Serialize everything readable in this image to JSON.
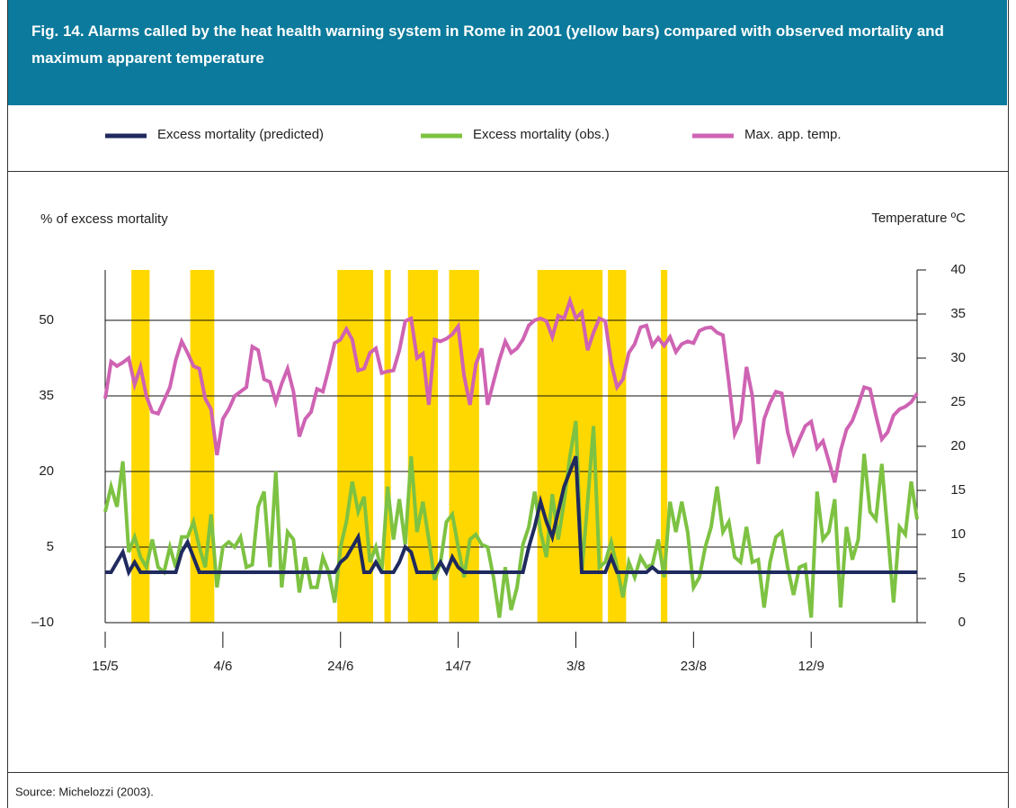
{
  "header": {
    "title": "Fig. 14. Alarms called by the heat health warning system in Rome in 2001 (yellow bars) compared with observed mortality and maximum apparent temperature"
  },
  "chart_data": {
    "type": "line",
    "ylabel": "% of excess mortality",
    "y2label": "Temperature ºC",
    "categories": [
      "15/5",
      null,
      null,
      null,
      null,
      null,
      null,
      null,
      null,
      null,
      null,
      null,
      null,
      null,
      null,
      null,
      null,
      null,
      null,
      null,
      "4/6",
      null,
      null,
      null,
      null,
      null,
      null,
      null,
      null,
      null,
      null,
      null,
      null,
      null,
      null,
      null,
      null,
      null,
      null,
      null,
      "24/6",
      null,
      null,
      null,
      null,
      null,
      null,
      null,
      null,
      null,
      null,
      null,
      null,
      null,
      null,
      null,
      null,
      null,
      null,
      null,
      "14/7",
      null,
      null,
      null,
      null,
      null,
      null,
      null,
      null,
      null,
      null,
      null,
      null,
      null,
      null,
      null,
      null,
      null,
      null,
      null,
      "3/8",
      null,
      null,
      null,
      null,
      null,
      null,
      null,
      null,
      null,
      null,
      null,
      null,
      null,
      null,
      null,
      null,
      null,
      null,
      null,
      "23/8",
      null,
      null,
      null,
      null,
      null,
      null,
      null,
      null,
      null,
      null,
      null,
      null,
      null,
      null,
      null,
      null,
      null,
      null,
      null,
      "12/9",
      null,
      null,
      null,
      null,
      null,
      null,
      null,
      null,
      null,
      null,
      null,
      null,
      null,
      null,
      null,
      null,
      null,
      null
    ],
    "series": [
      {
        "name": "Excess mortality (predicted)",
        "color": "#1f2a5e",
        "values": [
          0,
          0,
          2,
          4,
          0,
          2,
          0,
          0,
          0,
          0,
          0,
          0,
          0,
          4,
          6,
          3,
          0,
          0,
          0,
          0,
          0,
          0,
          0,
          0,
          0,
          0,
          0,
          0,
          0,
          0,
          0,
          0,
          0,
          0,
          0,
          0,
          0,
          0,
          0,
          0,
          2,
          3,
          5,
          7,
          0,
          0,
          2,
          0,
          0,
          0,
          2,
          5,
          4,
          0,
          0,
          0,
          0,
          2,
          0,
          3,
          1,
          0,
          0,
          0,
          0,
          0,
          0,
          0,
          0,
          0,
          0,
          0,
          5,
          9,
          14,
          10,
          7,
          12,
          17,
          20,
          23,
          0,
          0,
          0,
          0,
          0,
          3,
          0,
          0,
          0,
          0,
          0,
          0,
          1,
          0,
          0,
          0,
          0,
          0,
          0,
          0,
          0,
          0,
          0,
          0,
          0,
          0,
          0,
          0,
          0,
          0,
          0,
          0,
          0,
          0,
          0,
          0,
          0,
          0,
          0,
          0,
          0,
          0,
          0,
          0,
          0,
          0,
          0,
          0,
          0,
          0,
          0,
          0,
          0,
          0,
          0,
          0,
          0,
          0
        ]
      },
      {
        "name": "Excess mortality (obs.)",
        "color": "#7dc242",
        "values": [
          12,
          17,
          13,
          22,
          4,
          7,
          3,
          1,
          6.5,
          1,
          0,
          5,
          1,
          7,
          7,
          10,
          5,
          1,
          11.5,
          -3,
          5,
          6,
          5,
          7,
          1,
          1.5,
          13,
          16,
          1,
          20,
          -3,
          8,
          6.5,
          -4,
          3,
          -3,
          -3,
          3,
          0,
          -6,
          5,
          10,
          18,
          12,
          15,
          2,
          5,
          0,
          17,
          6.5,
          14.5,
          5.5,
          23,
          8,
          14,
          6.5,
          -1.5,
          2,
          10,
          11.5,
          5,
          -1,
          6.5,
          7.5,
          5.5,
          5,
          -1,
          -9,
          1,
          -7.5,
          -3,
          5.5,
          9,
          16,
          8,
          3,
          15.5,
          6.5,
          14,
          23,
          30,
          0,
          14,
          29,
          1,
          2,
          6,
          1,
          -5,
          2,
          -1,
          3,
          1,
          1.5,
          6.5,
          -1,
          14,
          8,
          14,
          8,
          -3,
          -1,
          5,
          9,
          17,
          8,
          10,
          3,
          2,
          9,
          2,
          2.5,
          -7,
          2,
          7,
          8,
          1,
          -4.5,
          1,
          1.5,
          -9,
          16,
          6.5,
          8,
          14.5,
          -7,
          9,
          2.5,
          6.5,
          23.5,
          12,
          10.5,
          21.5,
          8,
          -6,
          9,
          7.5,
          18,
          10.5
        ]
      },
      {
        "name": "Max. app. temp.",
        "color": "#cf63b3",
        "axis": "y2",
        "values": [
          25.4,
          29.6,
          29.1,
          29.5,
          30,
          27,
          29,
          25.7,
          23.9,
          23.7,
          25.2,
          26.7,
          29.8,
          31.9,
          30.6,
          29.1,
          28.8,
          25.4,
          24.2,
          19,
          23.1,
          24.2,
          25.7,
          26.2,
          26.7,
          31.3,
          30.9,
          27.6,
          27.3,
          25,
          27.1,
          28.8,
          26.2,
          21.1,
          23.1,
          23.9,
          26.5,
          26.2,
          28.8,
          31.7,
          32.1,
          33.3,
          32.1,
          28.6,
          28.8,
          30.6,
          31.1,
          28.3,
          28.5,
          28.6,
          30.9,
          34.2,
          34.5,
          30,
          30.5,
          24.7,
          32.1,
          31.9,
          32.2,
          32.7,
          33.6,
          28,
          24.7,
          29.3,
          31.1,
          24.7,
          27.3,
          29.8,
          31.9,
          30.6,
          31.1,
          32.1,
          33.7,
          34.3,
          34.5,
          34.2,
          32.4,
          34.8,
          34.5,
          36.5,
          34.5,
          35.2,
          30.9,
          32.9,
          34.5,
          34.2,
          29.5,
          26.7,
          27.6,
          30.6,
          31.6,
          33.5,
          33.7,
          31.4,
          32.3,
          31.4,
          32.4,
          30.7,
          31.6,
          31.9,
          31.7,
          33.1,
          33.4,
          33.5,
          32.9,
          32.6,
          27.3,
          21.4,
          22.9,
          29,
          25.7,
          18,
          23.1,
          24.9,
          26.2,
          26,
          21.6,
          19.2,
          20.8,
          22.3,
          22.8,
          19.8,
          20.6,
          18.3,
          15.9,
          19.5,
          21.9,
          22.9,
          24.7,
          26.7,
          26.5,
          23.5,
          20.8,
          21.6,
          23.5,
          24.2,
          24.5,
          25,
          26
        ]
      }
    ],
    "alarm_color": "#ffd800",
    "alarm": [
      0,
      0,
      0,
      0,
      0,
      1,
      1,
      1,
      0,
      0,
      0,
      0,
      0,
      0,
      0,
      1,
      1,
      1,
      1,
      0,
      0,
      0,
      0,
      0,
      0,
      0,
      0,
      0,
      0,
      0,
      0,
      0,
      0,
      0,
      0,
      0,
      0,
      0,
      0,
      0,
      1,
      1,
      1,
      1,
      1,
      1,
      0,
      0,
      1,
      0,
      0,
      0,
      1,
      1,
      1,
      1,
      1,
      0,
      0,
      1,
      1,
      1,
      1,
      1,
      0,
      0,
      0,
      0,
      0,
      0,
      0,
      0,
      0,
      0,
      1,
      1,
      1,
      1,
      1,
      1,
      1,
      1,
      1,
      1,
      1,
      0,
      1,
      1,
      1,
      0,
      0,
      0,
      0,
      0,
      0,
      1,
      0,
      0,
      0,
      0,
      0,
      0,
      0,
      0,
      0,
      0,
      0,
      0,
      0,
      0,
      0,
      0,
      0,
      0,
      0,
      0,
      0,
      0,
      0,
      0,
      0,
      0,
      0,
      0,
      0,
      0,
      0,
      0,
      0,
      0,
      0,
      0,
      0,
      0,
      0,
      0,
      0,
      0,
      0
    ],
    "ylim": [
      -10,
      60
    ],
    "yticks": [
      {
        "value": -10,
        "label": "–10"
      },
      5,
      20,
      35,
      50
    ],
    "y2lim": [
      0,
      40
    ],
    "y2ticks": [
      0,
      5,
      10,
      15,
      20,
      25,
      30,
      35,
      40
    ],
    "grid": true,
    "legend": "top"
  },
  "footer": {
    "source": "Source: Michelozzi (2003)."
  }
}
